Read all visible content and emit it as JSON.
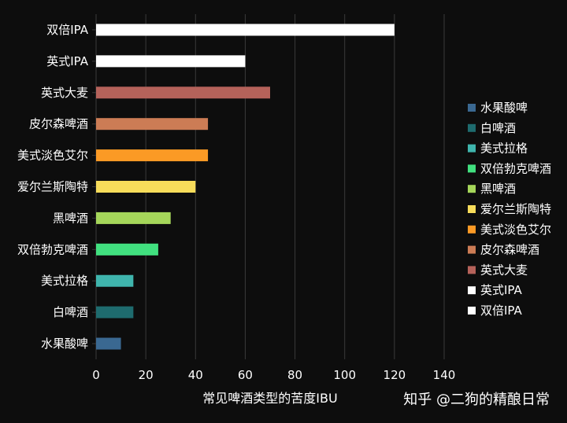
{
  "chart_data": {
    "type": "bar",
    "orientation": "horizontal",
    "categories": [
      "水果酸啤",
      "白啤酒",
      "美式拉格",
      "双倍勃克啤酒",
      "黑啤酒",
      "爱尔兰斯陶特",
      "美式淡色艾尔",
      "皮尔森啤酒",
      "英式大麦",
      "英式IPA",
      "双倍IPA"
    ],
    "values": [
      10,
      15,
      15,
      25,
      30,
      40,
      45,
      45,
      70,
      60,
      120
    ],
    "colors": [
      "#3a6891",
      "#1e6b6e",
      "#3fb5ad",
      "#41e07f",
      "#a5d65a",
      "#f7dc5a",
      "#fb9a25",
      "#cc7c55",
      "#b5625a",
      "#ffffff",
      "#ffffff"
    ],
    "xlabel": "常见啤酒类型的苦度IBU",
    "ylabel": "",
    "xlim": [
      0,
      140
    ],
    "xticks": [
      0,
      20,
      40,
      60,
      80,
      100,
      120,
      140
    ],
    "grid": "vertical",
    "legend": {
      "placement": "right",
      "items": [
        "水果酸啤",
        "白啤酒",
        "美式拉格",
        "双倍勃克啤酒",
        "黑啤酒",
        "爱尔兰斯陶特",
        "美式淡色艾尔",
        "皮尔森啤酒",
        "英式大麦",
        "英式IPA",
        "双倍IPA"
      ]
    }
  },
  "watermark": "知乎 @二狗的精酿日常",
  "colors": {
    "background": "#0d0d0d",
    "grid": "#3a3a3a",
    "text": "#ffffff"
  }
}
